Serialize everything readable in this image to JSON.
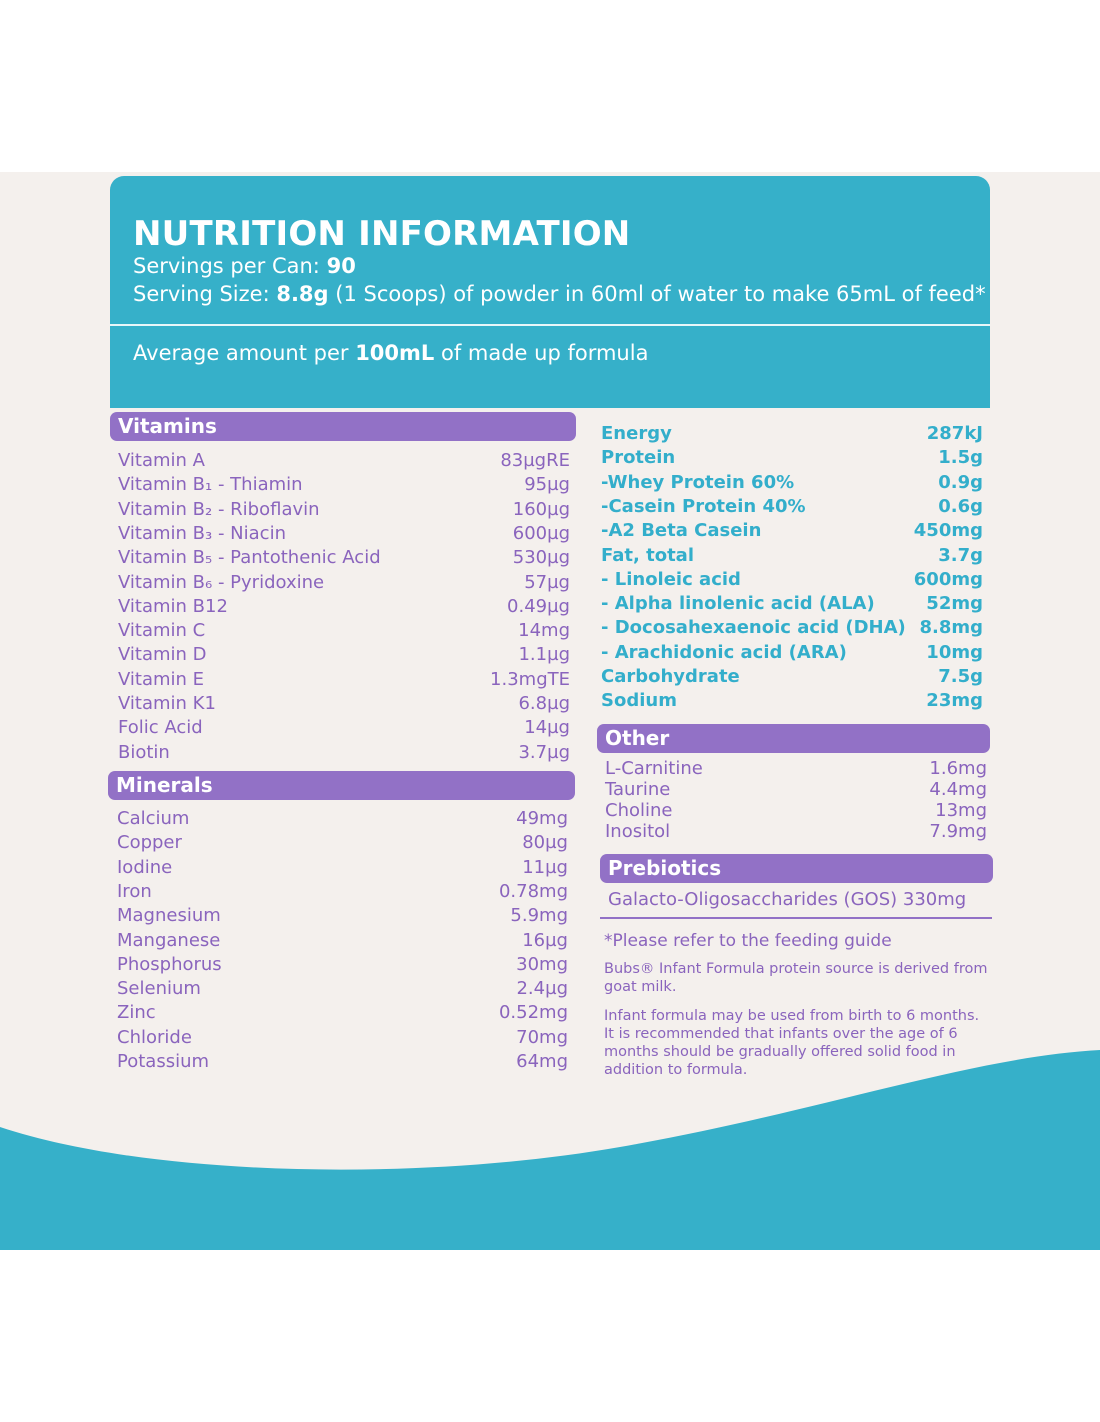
{
  "header": {
    "title": "NUTRITION INFORMATION",
    "servings_label": "Servings per Can:",
    "servings_value": "90",
    "serving_size_label": "Serving Size:",
    "serving_size_value": "8.8g",
    "serving_size_rest": "(1 Scoops) of powder in 60ml of water to make 65mL of feed*",
    "average_prefix": "Average amount per",
    "average_value": "100mL",
    "average_suffix": "of made up formula"
  },
  "vitamins": {
    "title": "Vitamins",
    "items": [
      {
        "name": "Vitamin A",
        "value": "83µgRE"
      },
      {
        "name": "Vitamin B₁ - Thiamin",
        "value": "95µg"
      },
      {
        "name": "Vitamin B₂ - Riboflavin",
        "value": "160µg"
      },
      {
        "name": "Vitamin B₃ - Niacin",
        "value": "600µg"
      },
      {
        "name": "Vitamin B₅ - Pantothenic Acid",
        "value": "530µg"
      },
      {
        "name": "Vitamin B₆ - Pyridoxine",
        "value": "57µg"
      },
      {
        "name": "Vitamin B12",
        "value": "0.49µg"
      },
      {
        "name": "Vitamin C",
        "value": "14mg"
      },
      {
        "name": "Vitamin D",
        "value": "1.1µg"
      },
      {
        "name": "Vitamin E",
        "value": "1.3mgTE"
      },
      {
        "name": "Vitamin K1",
        "value": "6.8µg"
      },
      {
        "name": "Folic Acid",
        "value": "14µg"
      },
      {
        "name": "Biotin",
        "value": "3.7µg"
      }
    ]
  },
  "minerals": {
    "title": "Minerals",
    "items": [
      {
        "name": "Calcium",
        "value": "49mg"
      },
      {
        "name": "Copper",
        "value": "80µg"
      },
      {
        "name": "Iodine",
        "value": "11µg"
      },
      {
        "name": "Iron",
        "value": "0.78mg"
      },
      {
        "name": "Magnesium",
        "value": "5.9mg"
      },
      {
        "name": "Manganese",
        "value": "16µg"
      },
      {
        "name": "Phosphorus",
        "value": "30mg"
      },
      {
        "name": "Selenium",
        "value": "2.4µg"
      },
      {
        "name": "Zinc",
        "value": "0.52mg"
      },
      {
        "name": "Chloride",
        "value": "70mg"
      },
      {
        "name": "Potassium",
        "value": "64mg"
      }
    ]
  },
  "macros": {
    "items": [
      {
        "name": "Energy",
        "value": "287kJ"
      },
      {
        "name": "Protein",
        "value": "1.5g"
      },
      {
        "name": "-Whey Protein 60%",
        "value": "0.9g"
      },
      {
        "name": "-Casein Protein 40%",
        "value": "0.6g"
      },
      {
        "name": "-A2 Beta Casein",
        "value": "450mg"
      },
      {
        "name": "Fat, total",
        "value": "3.7g"
      },
      {
        "name": "- Linoleic acid",
        "value": "600mg"
      },
      {
        "name": "- Alpha linolenic acid (ALA)",
        "value": "52mg"
      },
      {
        "name": "- Docosahexaenoic acid (DHA)",
        "value": "8.8mg"
      },
      {
        "name": "- Arachidonic acid (ARA)",
        "value": "10mg"
      },
      {
        "name": "Carbohydrate",
        "value": "7.5g"
      },
      {
        "name": "Sodium",
        "value": "23mg"
      }
    ]
  },
  "other": {
    "title": "Other",
    "items": [
      {
        "name": "L-Carnitine",
        "value": "1.6mg"
      },
      {
        "name": "Taurine",
        "value": "4.4mg"
      },
      {
        "name": "Choline",
        "value": "13mg"
      },
      {
        "name": "Inositol",
        "value": "7.9mg"
      }
    ]
  },
  "prebiotics": {
    "title": "Prebiotics",
    "line": "Galacto-Oligosaccharides (GOS) 330mg"
  },
  "notes": {
    "feeding": "*Please refer to the feeding guide",
    "protein_line1": "Bubs® Infant Formula protein source is derived from",
    "protein_line2": "goat milk.",
    "infant_line1": "Infant formula may be used from birth to 6 months.",
    "infant_line2": "It is recommended that infants over the age of 6",
    "infant_line3": "months should be gradually offered solid food in",
    "infant_line4": "addition to formula."
  },
  "colors": {
    "teal": "#36b0c9",
    "purple": "#9271c6",
    "purple_text": "#8a64bd",
    "teal_text": "#33aecb",
    "background": "#f4f0ed"
  }
}
